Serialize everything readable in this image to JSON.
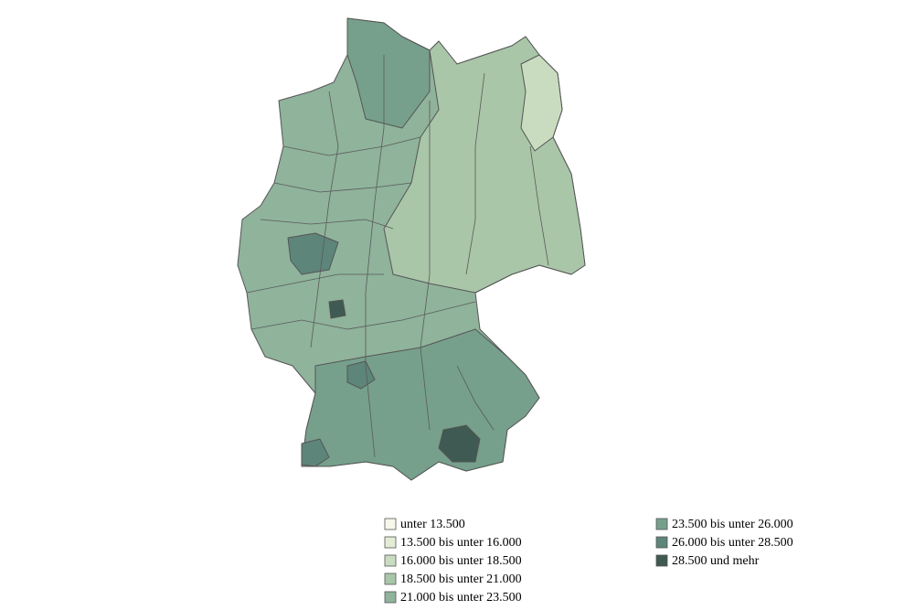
{
  "legend": {
    "items": [
      {
        "label": "unter 13.500",
        "color": "#f7f8ea"
      },
      {
        "label": "13.500 bis unter 16.000",
        "color": "#e3ecd5"
      },
      {
        "label": "16.000 bis unter 18.500",
        "color": "#c9dcc0"
      },
      {
        "label": "18.500 bis unter 21.000",
        "color": "#a9c6a8"
      },
      {
        "label": "21.000 bis unter 23.500",
        "color": "#8fb39b"
      },
      {
        "label": "23.500 bis unter 26.000",
        "color": "#76a08c"
      },
      {
        "label": "26.000 bis unter 28.500",
        "color": "#5d857a"
      },
      {
        "label": "28.500 und mehr",
        "color": "#3e5a52"
      }
    ]
  }
}
